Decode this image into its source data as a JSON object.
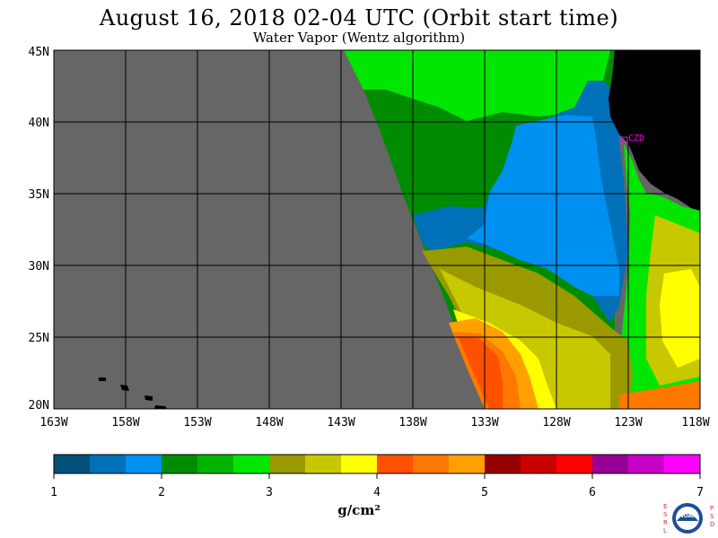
{
  "title": "August 16, 2018  02-04 UTC  (Orbit start time)",
  "subtitle": "Water Vapor (Wentz algorithm)",
  "map": {
    "lat_labels": [
      "45N",
      "40N",
      "35N",
      "30N",
      "25N",
      "20N"
    ],
    "lon_labels": [
      "163W",
      "158W",
      "153W",
      "148W",
      "143W",
      "138W",
      "133W",
      "128W",
      "123W",
      "118W"
    ],
    "marker_label": "CZD",
    "colors": {
      "no_data": "#666666",
      "land": "#000000",
      "grid": "#000000",
      "marker": "#ff00ff"
    }
  },
  "colorbar": {
    "unit": "g/cm²",
    "tick_labels": [
      "1",
      "2",
      "3",
      "4",
      "5",
      "6",
      "7"
    ],
    "colors": [
      "#00507a",
      "#0070b8",
      "#0090f0",
      "#008c00",
      "#00b400",
      "#00e600",
      "#9a9a00",
      "#c8c800",
      "#ffff00",
      "#ff5000",
      "#ff7800",
      "#ffa000",
      "#960000",
      "#c80000",
      "#ff0000",
      "#960096",
      "#c800c8",
      "#ff00ff"
    ]
  },
  "logo": {
    "left_letters": "ESRL",
    "right_letters": "PSD",
    "badge_text": "NOAA"
  }
}
